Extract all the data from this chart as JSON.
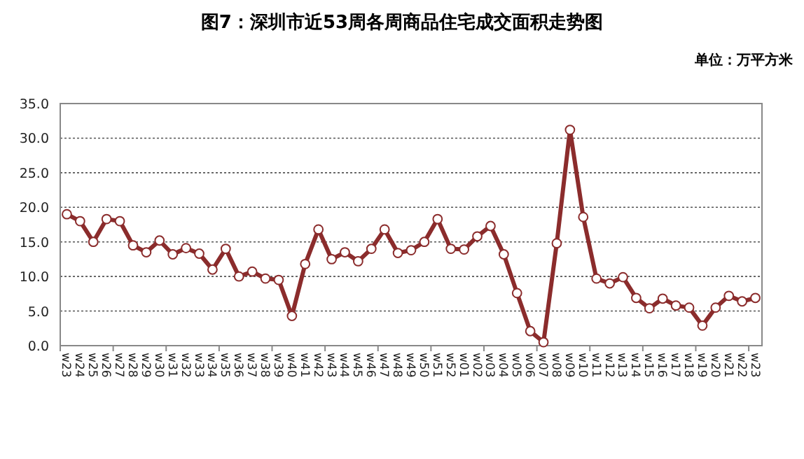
{
  "chart_data": {
    "type": "line",
    "title": "图7：深圳市近53周各周商品住宅成交面积走势图",
    "ylabel": "单位：万平方米",
    "categories": [
      "w23",
      "w24",
      "w25",
      "w26",
      "w27",
      "w28",
      "w29",
      "w30",
      "w31",
      "w32",
      "w33",
      "w34",
      "w35",
      "w36",
      "w37",
      "w38",
      "w39",
      "w40",
      "w41",
      "w42",
      "w43",
      "w44",
      "w45",
      "w46",
      "w47",
      "w48",
      "w49",
      "w50",
      "w51",
      "w52",
      "w01",
      "w02",
      "w03",
      "w04",
      "w05",
      "w06",
      "w07",
      "w08",
      "w09",
      "w10",
      "w11",
      "w12",
      "w13",
      "w14",
      "w15",
      "w16",
      "w17",
      "w18",
      "w19",
      "w20",
      "w21",
      "w22",
      "w23"
    ],
    "series": [
      {
        "color": "#8b2c2c",
        "values": [
          19.0,
          18.0,
          15.0,
          18.3,
          18.0,
          14.5,
          13.5,
          15.2,
          13.2,
          14.1,
          13.3,
          11.0,
          14.0,
          10.0,
          10.7,
          9.7,
          9.5,
          4.3,
          11.8,
          16.8,
          12.5,
          13.5,
          12.2,
          14.0,
          16.8,
          13.4,
          13.8,
          15.0,
          18.3,
          14.0,
          13.9,
          15.8,
          17.3,
          13.2,
          7.6,
          2.1,
          0.5,
          14.8,
          31.2,
          18.6,
          9.7,
          9.0,
          9.9,
          6.9,
          5.4,
          6.8,
          5.8,
          5.5,
          2.9,
          5.5,
          7.2,
          6.4,
          6.9
        ]
      }
    ],
    "ylim": [
      0,
      35
    ],
    "yticks": [
      {
        "value": 0,
        "label": "0.0"
      },
      {
        "value": 5,
        "label": "5.0"
      },
      {
        "value": 10,
        "label": "10.0"
      },
      {
        "value": 15,
        "label": "15.0"
      },
      {
        "value": 20,
        "label": "20.0"
      },
      {
        "value": 25,
        "label": "25.0"
      },
      {
        "value": 30,
        "label": "30.0"
      },
      {
        "value": 35,
        "label": "35.0"
      }
    ],
    "grid": "y",
    "marker": "circle",
    "line_style": "solid"
  }
}
